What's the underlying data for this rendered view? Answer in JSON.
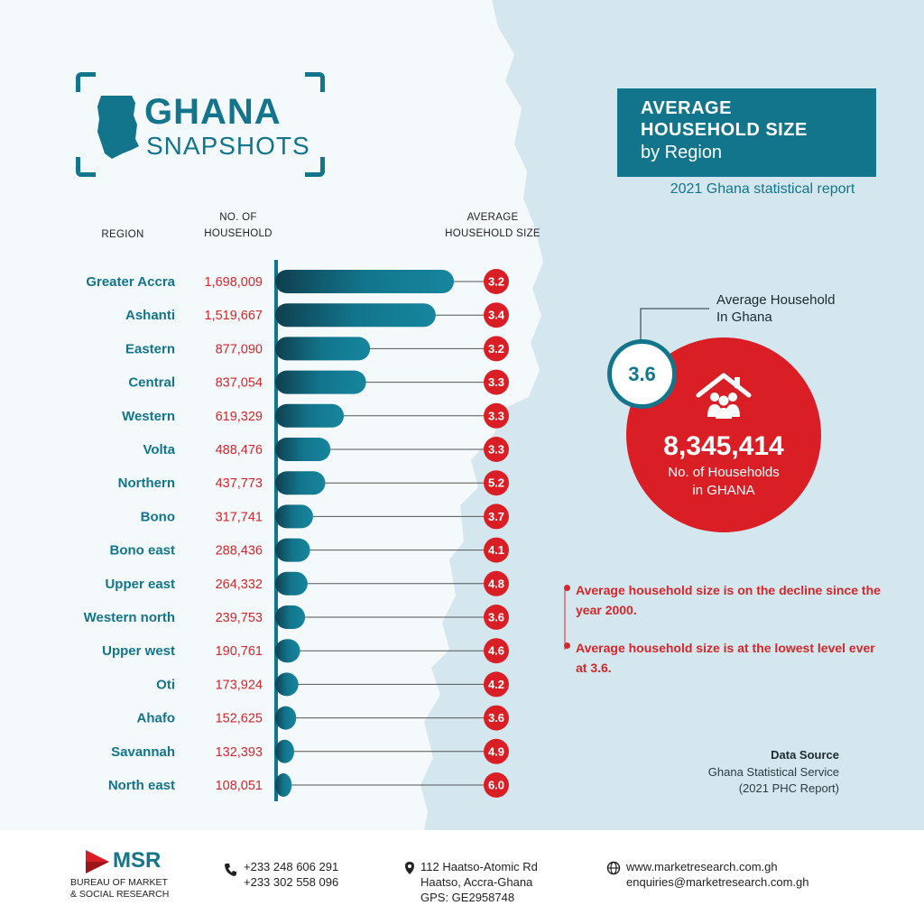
{
  "logo": {
    "line1": "GHANA",
    "line2": "SNAPSHOTS",
    "icon": "ghana-map-icon"
  },
  "title": {
    "line1": "AVERAGE",
    "line2": "HOUSEHOLD SIZE",
    "line3": "by Region"
  },
  "subtitle": "2021 Ghana statistical report",
  "headers": {
    "region": "REGION",
    "households_1": "NO. OF",
    "households_2": "HOUSEHOLD",
    "avg_1": "AVERAGE",
    "avg_2": "HOUSEHOLD SIZE"
  },
  "chart_data": {
    "type": "bar",
    "orientation": "horizontal",
    "categories": [
      "Greater Accra",
      "Ashanti",
      "Eastern",
      "Central",
      "Western",
      "Volta",
      "Northern",
      "Bono",
      "Bono east",
      "Upper east",
      "Western north",
      "Upper west",
      "Oti",
      "Ahafo",
      "Savannah",
      "North east"
    ],
    "households": [
      1698009,
      1519667,
      877090,
      837054,
      619329,
      488476,
      437773,
      317741,
      288436,
      264332,
      239753,
      190761,
      173924,
      152625,
      132393,
      108051
    ],
    "household_labels": [
      "1,698,009",
      "1,519,667",
      "877,090",
      "837,054",
      "619,329",
      "488,476",
      "437,773",
      "317,741",
      "288,436",
      "264,332",
      "239,753",
      "190,761",
      "173,924",
      "152,625",
      "132,393",
      "108,051"
    ],
    "avg_household_size": [
      3.2,
      3.4,
      3.2,
      3.3,
      3.3,
      3.3,
      5.2,
      3.7,
      4.1,
      4.8,
      3.6,
      4.6,
      4.2,
      3.6,
      4.9,
      6.0
    ],
    "avg_labels": [
      "3.2",
      "3.4",
      "3.2",
      "3.3",
      "3.3",
      "3.3",
      "5.2",
      "3.7",
      "4.1",
      "4.8",
      "3.6",
      "4.6",
      "4.2",
      "3.6",
      "4.9",
      "6.0"
    ],
    "bar_color": "#12758c",
    "marker_color": "#d91f25"
  },
  "ghana_summary": {
    "avg_label_1": "Average Household",
    "avg_label_2": "In Ghana",
    "avg_value": "3.6",
    "total_households": "8,345,414",
    "total_caption_1": "No. of Households",
    "total_caption_2": "in GHANA",
    "icon": "household-icon"
  },
  "notes": [
    "Average household size is on the decline since the year 2000.",
    "Average household size is at the lowest level ever at 3.6."
  ],
  "data_source": {
    "title": "Data Source",
    "line1": "Ghana Statistical Service",
    "line2": "(2021 PHC Report)"
  },
  "footer": {
    "brand": "MSR",
    "brand_sub_1": "BUREAU OF MARKET",
    "brand_sub_2": "& SOCIAL RESEARCH",
    "phone_1": "+233 248 606 291",
    "phone_2": "+233 302 558 096",
    "address_1": "112 Haatso-Atomic Rd",
    "address_2": "Haatso, Accra-Ghana",
    "address_3": "GPS: GE2958748",
    "web": "www.marketresearch.com.gh",
    "email": "enquiries@marketresearch.com.gh"
  },
  "colors": {
    "teal": "#12758c",
    "red": "#d91f25",
    "map_blue": "#d5e7ee"
  }
}
